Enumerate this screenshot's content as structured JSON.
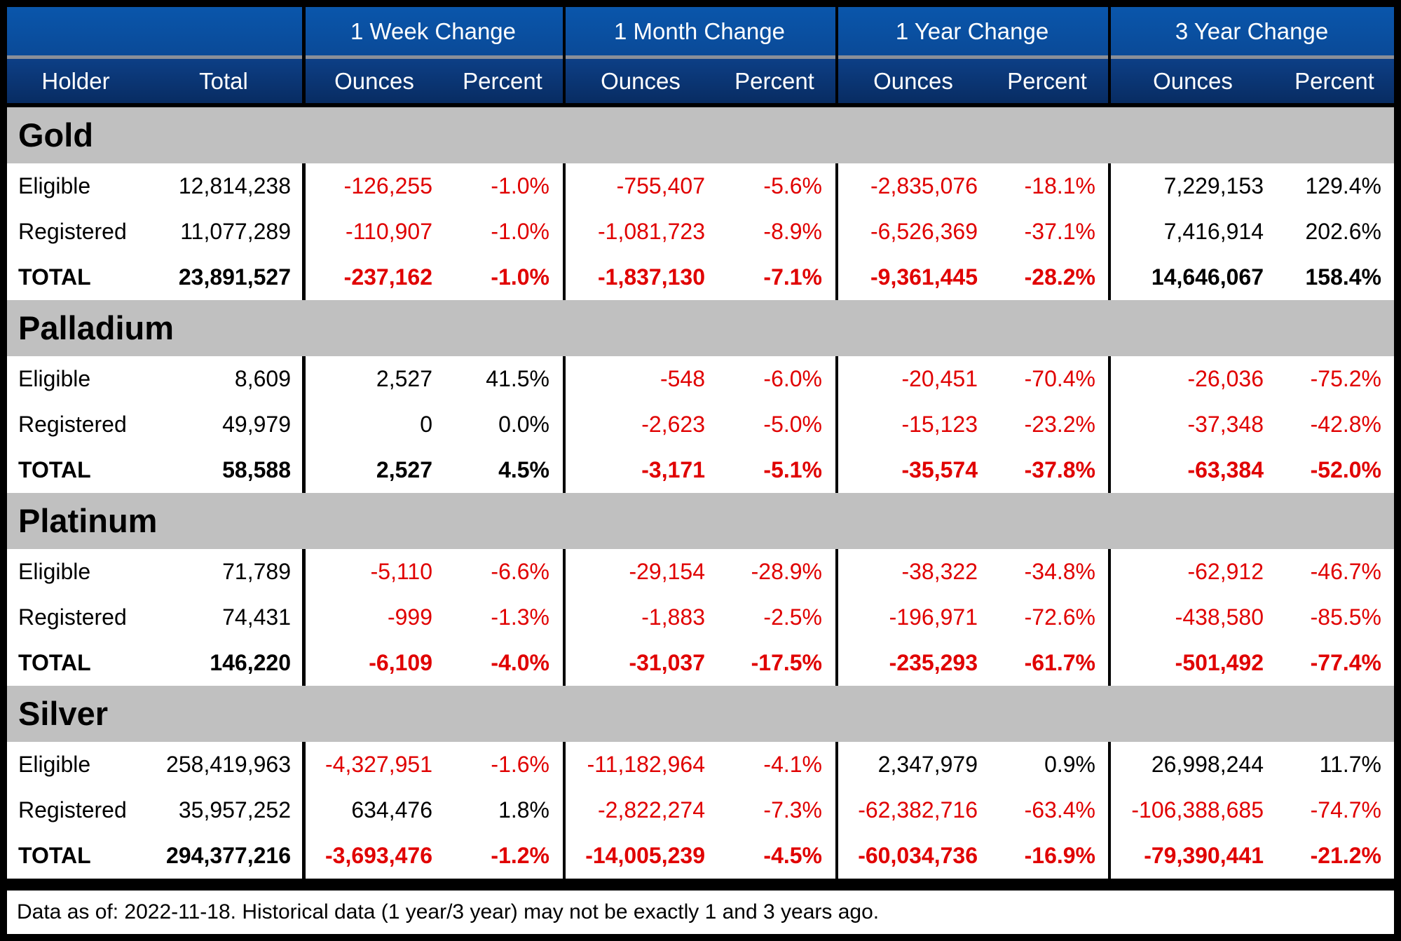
{
  "header": {
    "groups": [
      "1 Week Change",
      "1 Month Change",
      "1 Year Change",
      "3 Year Change"
    ],
    "columns": [
      "Holder",
      "Total",
      "Ounces",
      "Percent",
      "Ounces",
      "Percent",
      "Ounces",
      "Percent",
      "Ounces",
      "Percent"
    ]
  },
  "sections": [
    {
      "name": "Gold",
      "rows": [
        [
          "Eligible",
          "12,814,238",
          "-126,255",
          "-1.0%",
          "-755,407",
          "-5.6%",
          "-2,835,076",
          "-18.1%",
          "7,229,153",
          "129.4%"
        ],
        [
          "Registered",
          "11,077,289",
          "-110,907",
          "-1.0%",
          "-1,081,723",
          "-8.9%",
          "-6,526,369",
          "-37.1%",
          "7,416,914",
          "202.6%"
        ],
        [
          "TOTAL",
          "23,891,527",
          "-237,162",
          "-1.0%",
          "-1,837,130",
          "-7.1%",
          "-9,361,445",
          "-28.2%",
          "14,646,067",
          "158.4%"
        ]
      ]
    },
    {
      "name": "Palladium",
      "rows": [
        [
          "Eligible",
          "8,609",
          "2,527",
          "41.5%",
          "-548",
          "-6.0%",
          "-20,451",
          "-70.4%",
          "-26,036",
          "-75.2%"
        ],
        [
          "Registered",
          "49,979",
          "0",
          "0.0%",
          "-2,623",
          "-5.0%",
          "-15,123",
          "-23.2%",
          "-37,348",
          "-42.8%"
        ],
        [
          "TOTAL",
          "58,588",
          "2,527",
          "4.5%",
          "-3,171",
          "-5.1%",
          "-35,574",
          "-37.8%",
          "-63,384",
          "-52.0%"
        ]
      ]
    },
    {
      "name": "Platinum",
      "rows": [
        [
          "Eligible",
          "71,789",
          "-5,110",
          "-6.6%",
          "-29,154",
          "-28.9%",
          "-38,322",
          "-34.8%",
          "-62,912",
          "-46.7%"
        ],
        [
          "Registered",
          "74,431",
          "-999",
          "-1.3%",
          "-1,883",
          "-2.5%",
          "-196,971",
          "-72.6%",
          "-438,580",
          "-85.5%"
        ],
        [
          "TOTAL",
          "146,220",
          "-6,109",
          "-4.0%",
          "-31,037",
          "-17.5%",
          "-235,293",
          "-61.7%",
          "-501,492",
          "-77.4%"
        ]
      ]
    },
    {
      "name": "Silver",
      "rows": [
        [
          "Eligible",
          "258,419,963",
          "-4,327,951",
          "-1.6%",
          "-11,182,964",
          "-4.1%",
          "2,347,979",
          "0.9%",
          "26,998,244",
          "11.7%"
        ],
        [
          "Registered",
          "35,957,252",
          "634,476",
          "1.8%",
          "-2,822,274",
          "-7.3%",
          "-62,382,716",
          "-63.4%",
          "-106,388,685",
          "-74.7%"
        ],
        [
          "TOTAL",
          "294,377,216",
          "-3,693,476",
          "-1.2%",
          "-14,005,239",
          "-4.5%",
          "-60,034,736",
          "-16.9%",
          "-79,390,441",
          "-21.2%"
        ]
      ]
    }
  ],
  "footer": "Data as of: 2022-11-18. Historical data (1 year/3 year) may not be exactly 1 and 3 years ago."
}
